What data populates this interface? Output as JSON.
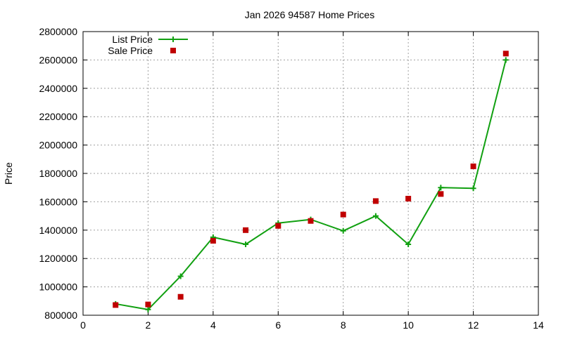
{
  "chart_data": {
    "type": "line",
    "title": "Jan 2026 94587 Home Prices",
    "xlabel": "",
    "ylabel": "Price",
    "xlim": [
      0,
      14
    ],
    "ylim": [
      800000,
      2800000
    ],
    "xticks": [
      0,
      2,
      4,
      6,
      8,
      10,
      12,
      14
    ],
    "yticks": [
      800000,
      1000000,
      1200000,
      1400000,
      1600000,
      1800000,
      2000000,
      2200000,
      2400000,
      2600000,
      2800000
    ],
    "grid": true,
    "legend_position": "top-left",
    "series": [
      {
        "name": "List Price",
        "style": "line-points",
        "color": "#11a011",
        "x": [
          1,
          2,
          3,
          4,
          5,
          6,
          7,
          8,
          9,
          10,
          11,
          12,
          13
        ],
        "y": [
          880000,
          840000,
          1075000,
          1350000,
          1300000,
          1450000,
          1475000,
          1395000,
          1500000,
          1300000,
          1700000,
          1695000,
          2600000
        ]
      },
      {
        "name": "Sale Price",
        "style": "points",
        "color": "#c00000",
        "x": [
          1,
          2,
          3,
          4,
          5,
          6,
          7,
          8,
          9,
          10,
          11,
          12,
          13
        ],
        "y": [
          872000,
          876000,
          930000,
          1325000,
          1400000,
          1430000,
          1465000,
          1510000,
          1605000,
          1622000,
          1655000,
          1850000,
          2645000
        ]
      }
    ]
  }
}
